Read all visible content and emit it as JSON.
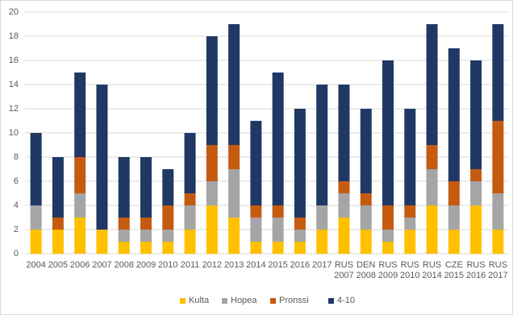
{
  "chart_data": {
    "type": "stacked_bar",
    "categories": [
      "2004",
      "2005",
      "2006",
      "2007",
      "2008",
      "2009",
      "2010",
      "2011",
      "2012",
      "2013",
      "2014",
      "2015",
      "2016",
      "2017",
      "RUS 2007",
      "DEN 2008",
      "RUS 2009",
      "RUS 2010",
      "RUS 2014",
      "CZE 2015",
      "RUS 2016",
      "RUS 2017"
    ],
    "series": [
      {
        "name": "Kulta",
        "color": "#ffc000",
        "values": [
          2,
          2,
          3,
          2,
          1,
          1,
          1,
          2,
          4,
          3,
          1,
          1,
          1,
          2,
          3,
          2,
          1,
          2,
          4,
          2,
          4,
          2
        ]
      },
      {
        "name": "Hopea",
        "color": "#a5a5a5",
        "values": [
          2,
          0,
          2,
          0,
          1,
          1,
          1,
          2,
          2,
          4,
          2,
          2,
          1,
          2,
          2,
          2,
          1,
          1,
          3,
          2,
          2,
          3
        ]
      },
      {
        "name": "Pronssi",
        "color": "#c55a11",
        "values": [
          0,
          1,
          3,
          0,
          1,
          1,
          2,
          1,
          3,
          2,
          1,
          1,
          1,
          0,
          1,
          1,
          2,
          1,
          2,
          2,
          1,
          6
        ]
      },
      {
        "name": "4-10",
        "color": "#203864",
        "values": [
          6,
          5,
          7,
          12,
          5,
          5,
          3,
          5,
          9,
          10,
          7,
          11,
          9,
          10,
          8,
          7,
          12,
          8,
          10,
          11,
          9,
          8
        ]
      }
    ],
    "ylim": [
      0,
      20
    ],
    "yticks": [
      0,
      2,
      4,
      6,
      8,
      10,
      12,
      14,
      16,
      18,
      20
    ],
    "grid": true,
    "legend": "bottom"
  }
}
